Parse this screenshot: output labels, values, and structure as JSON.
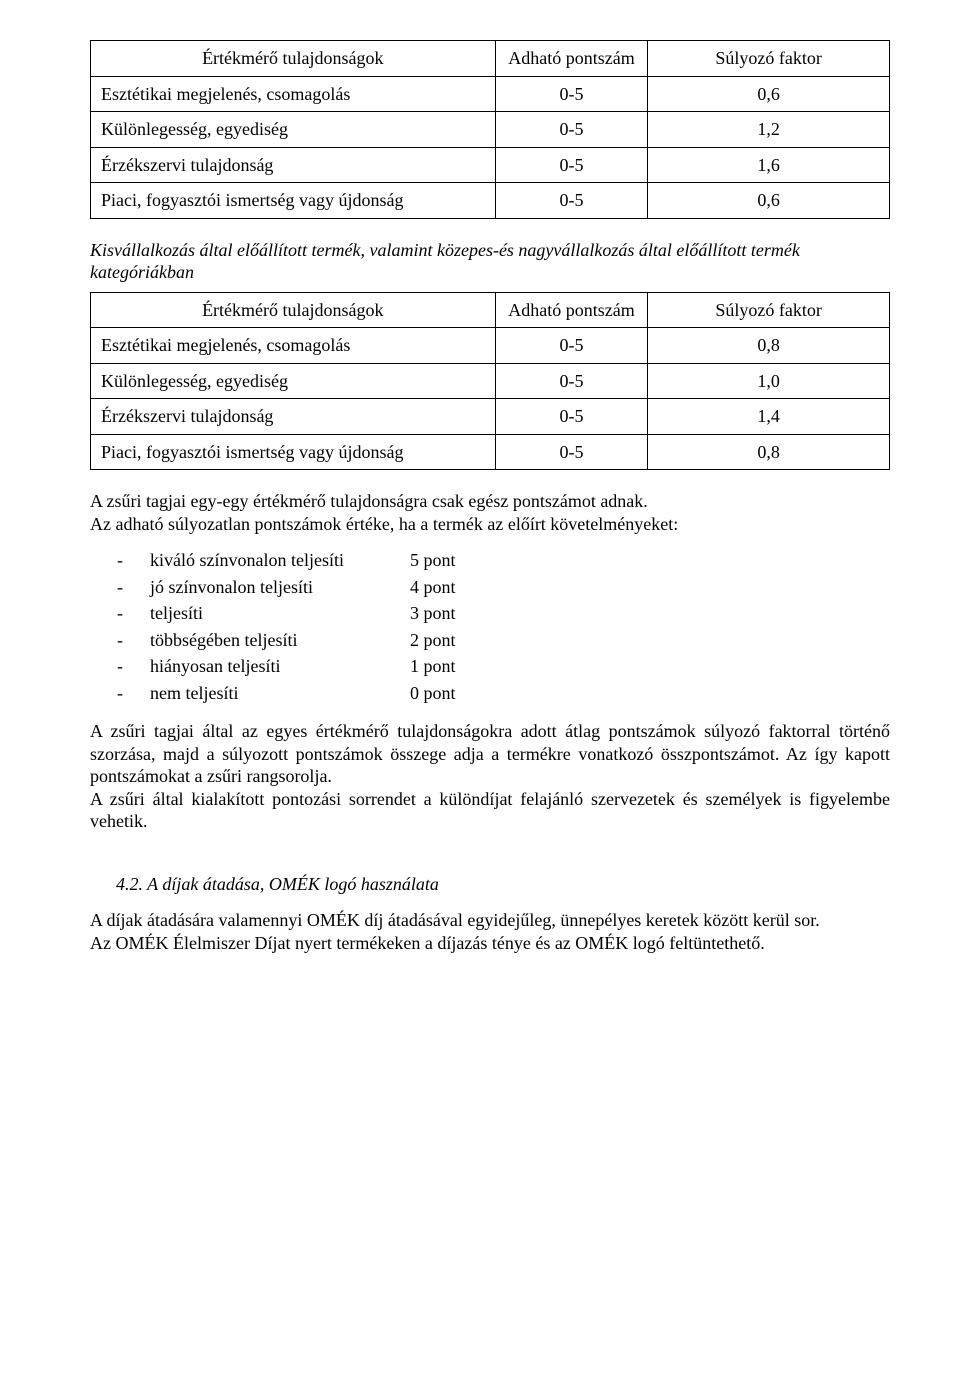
{
  "tables": {
    "t1": {
      "headers": {
        "prop": "Értékmérő tulajdonságok",
        "score": "Adható pontszám",
        "factor": "Súlyozó faktor"
      },
      "rows": [
        {
          "prop": "Esztétikai megjelenés, csomagolás",
          "score": "0-5",
          "factor": "0,6"
        },
        {
          "prop": "Különlegesség, egyediség",
          "score": "0-5",
          "factor": "1,2"
        },
        {
          "prop": "Érzékszervi tulajdonság",
          "score": "0-5",
          "factor": "1,6"
        },
        {
          "prop": "Piaci, fogyasztói ismertség vagy újdonság",
          "score": "0-5",
          "factor": "0,6"
        }
      ]
    },
    "t2": {
      "intro": "Kisvállalkozás által előállított termék, valamint közepes-és nagyvállalkozás által előállított termék kategóriákban",
      "headers": {
        "prop": "Értékmérő tulajdonságok",
        "score": "Adható pontszám",
        "factor": "Súlyozó faktor"
      },
      "rows": [
        {
          "prop": "Esztétikai megjelenés, csomagolás",
          "score": "0-5",
          "factor": "0,8"
        },
        {
          "prop": "Különlegesség, egyediség",
          "score": "0-5",
          "factor": "1,0"
        },
        {
          "prop": "Érzékszervi tulajdonság",
          "score": "0-5",
          "factor": "1,4"
        },
        {
          "prop": "Piaci, fogyasztói ismertség vagy újdonság",
          "score": "0-5",
          "factor": "0,8"
        }
      ]
    }
  },
  "paras": {
    "p1": "A zsűri tagjai egy-egy értékmérő tulajdonságra csak egész pontszámot adnak.",
    "p2": "Az adható súlyozatlan pontszámok értéke, ha a termék az előírt követelményeket:"
  },
  "score_levels": [
    {
      "label": "kiváló színvonalon teljesíti",
      "points": "5 pont"
    },
    {
      "label": "jó színvonalon teljesíti",
      "points": "4 pont"
    },
    {
      "label": "teljesíti",
      "points": "3 pont"
    },
    {
      "label": "többségében teljesíti",
      "points": "2 pont"
    },
    {
      "label": "hiányosan teljesíti",
      "points": "1 pont"
    },
    {
      "label": "nem teljesíti",
      "points": "0 pont"
    }
  ],
  "paras2": {
    "p3": "A zsűri tagjai által az egyes értékmérő tulajdonságokra adott átlag pontszámok súlyozó faktorral történő szorzása, majd a súlyozott pontszámok összege adja a termékre vonatkozó összpontszámot. Az így kapott pontszámokat a zsűri rangsorolja.",
    "p4": "A zsűri által kialakított pontozási sorrendet a különdíjat felajánló szervezetek és személyek is figyelembe vehetik."
  },
  "section42": {
    "heading": "4.2. A díjak átadása, OMÉK logó használata",
    "p5": "A díjak átadására valamennyi OMÉK díj átadásával egyidejűleg, ünnepélyes keretek között kerül sor.",
    "p6": "Az OMÉK Élelmiszer Díjat nyert termékeken a díjazás ténye és az OMÉK logó feltüntethető."
  }
}
